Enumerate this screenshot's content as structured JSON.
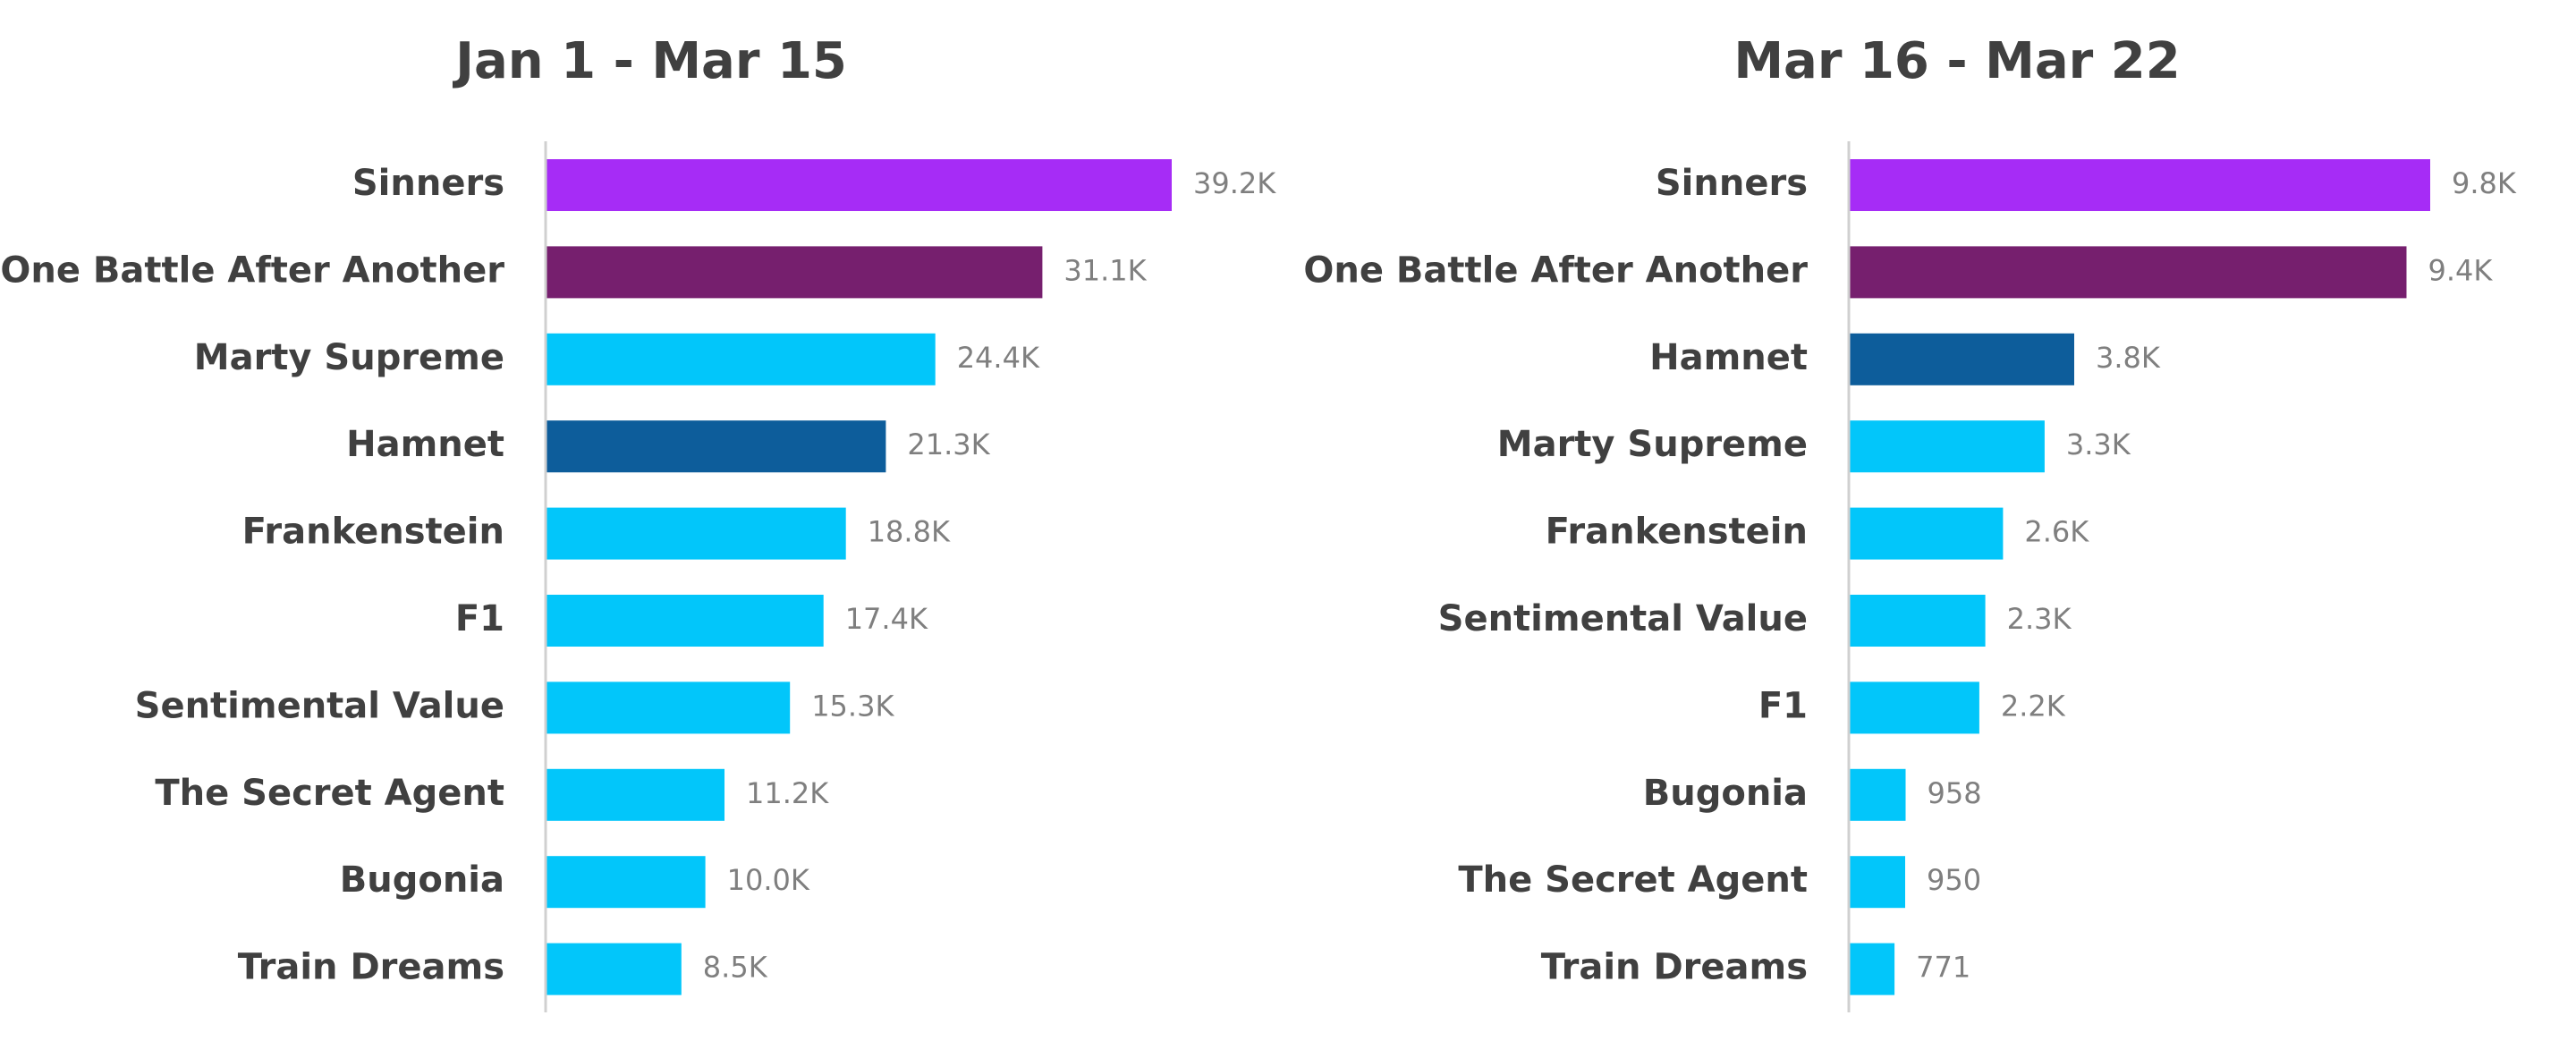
{
  "chart_data": [
    {
      "type": "bar",
      "orientation": "horizontal",
      "title": "Jan 1 - Mar 15",
      "xlim": [
        0,
        39200
      ],
      "grid": false,
      "legend": "none",
      "categories": [
        "Sinners",
        "One Battle After Another",
        "Marty Supreme",
        "Hamnet",
        "Frankenstein",
        "F1",
        "Sentimental Value",
        "The Secret Agent",
        "Bugonia",
        "Train Dreams"
      ],
      "values": [
        39200,
        31100,
        24400,
        21300,
        18800,
        17400,
        15300,
        11200,
        10000,
        8500
      ],
      "value_labels": [
        "39.2K",
        "31.1K",
        "24.4K",
        "21.3K",
        "18.8K",
        "17.4K",
        "15.3K",
        "11.2K",
        "10.0K",
        "8.5K"
      ],
      "colors": [
        "#A62CF6",
        "#761F6E",
        "#02C6FA",
        "#0D5D9B",
        "#02C6FA",
        "#02C6FA",
        "#02C6FA",
        "#02C6FA",
        "#02C6FA",
        "#02C6FA"
      ]
    },
    {
      "type": "bar",
      "orientation": "horizontal",
      "title": "Mar 16 - Mar 22",
      "xlim": [
        0,
        9800
      ],
      "grid": false,
      "legend": "none",
      "categories": [
        "Sinners",
        "One Battle After Another",
        "Hamnet",
        "Marty Supreme",
        "Frankenstein",
        "Sentimental Value",
        "F1",
        "Bugonia",
        "The Secret Agent",
        "Train Dreams"
      ],
      "values": [
        9800,
        9400,
        3800,
        3300,
        2600,
        2300,
        2200,
        958,
        950,
        771
      ],
      "value_labels": [
        "9.8K",
        "9.4K",
        "3.8K",
        "3.3K",
        "2.6K",
        "2.3K",
        "2.2K",
        "958",
        "950",
        "771"
      ],
      "colors": [
        "#A62CF6",
        "#761F6E",
        "#0D5D9B",
        "#02C6FA",
        "#02C6FA",
        "#02C6FA",
        "#02C6FA",
        "#02C6FA",
        "#02C6FA",
        "#02C6FA"
      ]
    }
  ]
}
